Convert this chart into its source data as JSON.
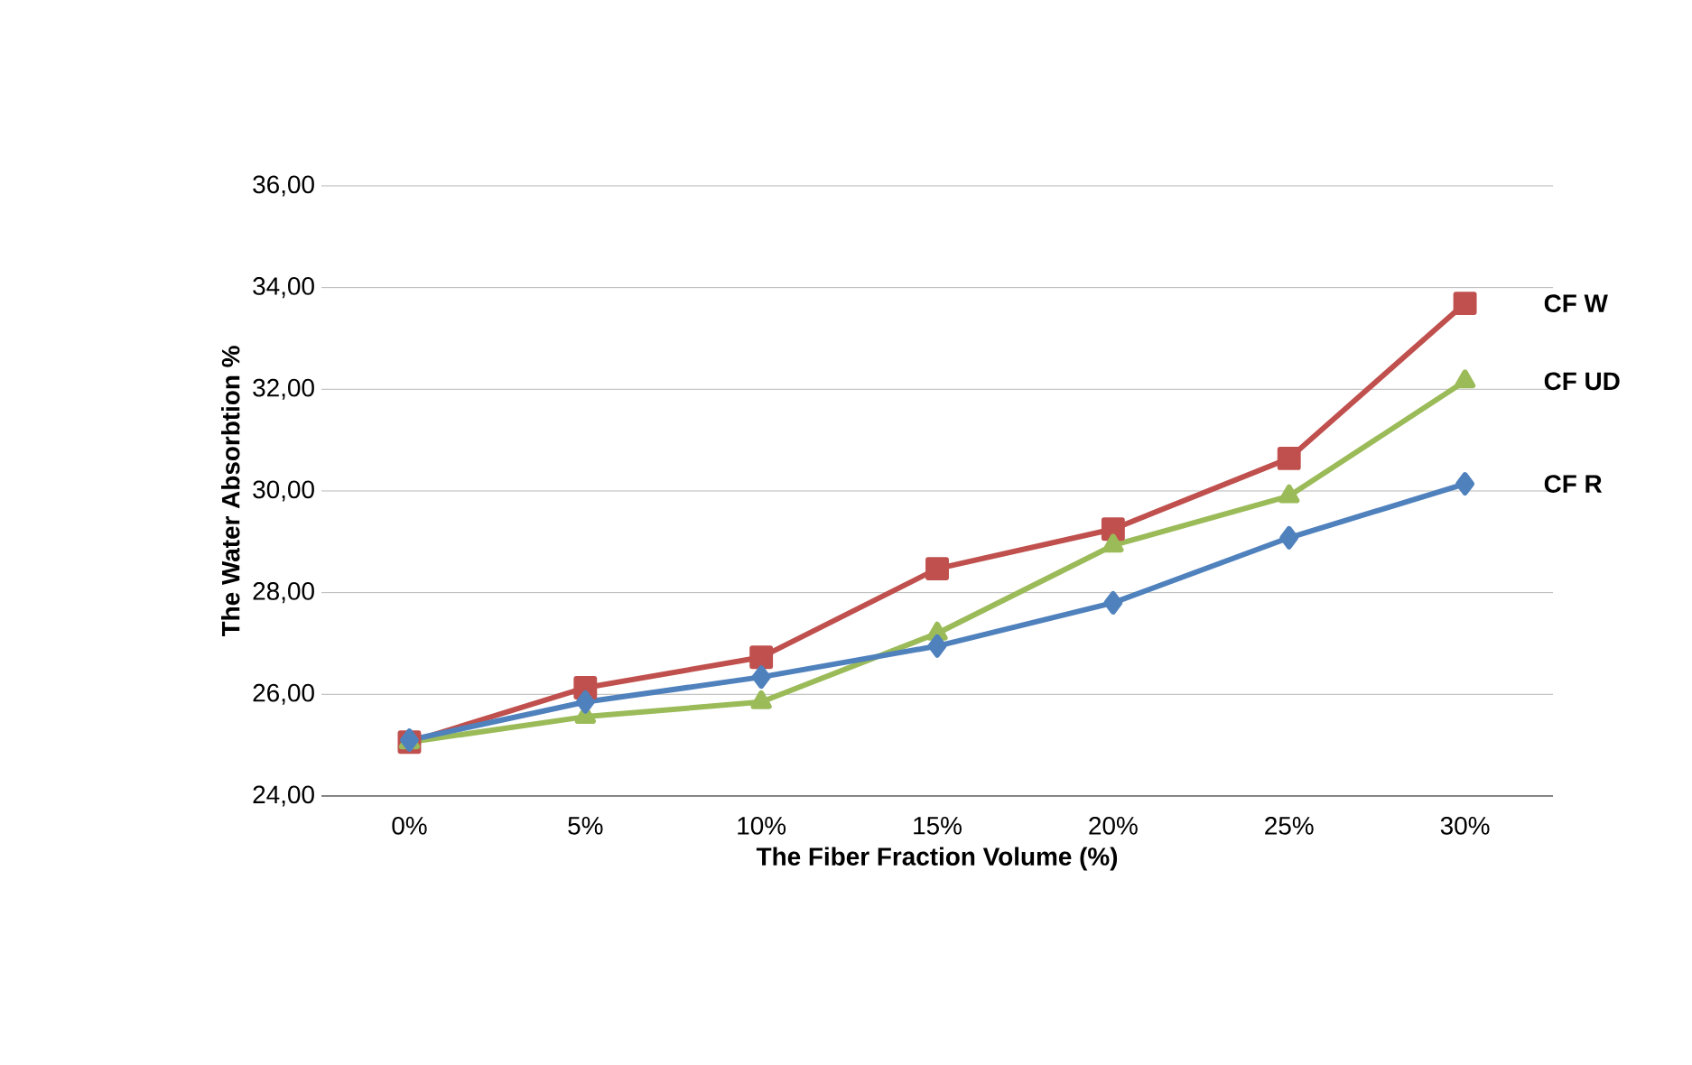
{
  "chart_data": {
    "type": "line",
    "xlabel": "The Fiber Fraction Volume (%)",
    "ylabel": "The Water Absorbtion  %",
    "categories": [
      "0%",
      "5%",
      "10%",
      "15%",
      "20%",
      "25%",
      "30%"
    ],
    "series": [
      {
        "name": "CF W",
        "color": "#c0504d",
        "marker": "square",
        "values": [
          25.06,
          26.13,
          26.73,
          28.47,
          29.25,
          30.64,
          33.69
        ]
      },
      {
        "name": "CF UD",
        "color": "#9bbb59",
        "marker": "triangle",
        "values": [
          25.06,
          25.56,
          25.85,
          27.2,
          28.93,
          29.9,
          32.16
        ]
      },
      {
        "name": "CF R",
        "color": "#4f81bd",
        "marker": "diamond",
        "values": [
          25.1,
          25.85,
          26.34,
          26.95,
          27.8,
          29.08,
          30.14
        ]
      }
    ],
    "ylim": [
      24,
      36
    ],
    "yticks": [
      {
        "value": 24,
        "label": "24,00"
      },
      {
        "value": 26,
        "label": "26,00"
      },
      {
        "value": 28,
        "label": "28,00"
      },
      {
        "value": 30,
        "label": "30,00"
      },
      {
        "value": 32,
        "label": "32,00"
      },
      {
        "value": 34,
        "label": "34,00"
      },
      {
        "value": 36,
        "label": "36,00"
      }
    ],
    "grid": "y",
    "line_style": "solid"
  }
}
